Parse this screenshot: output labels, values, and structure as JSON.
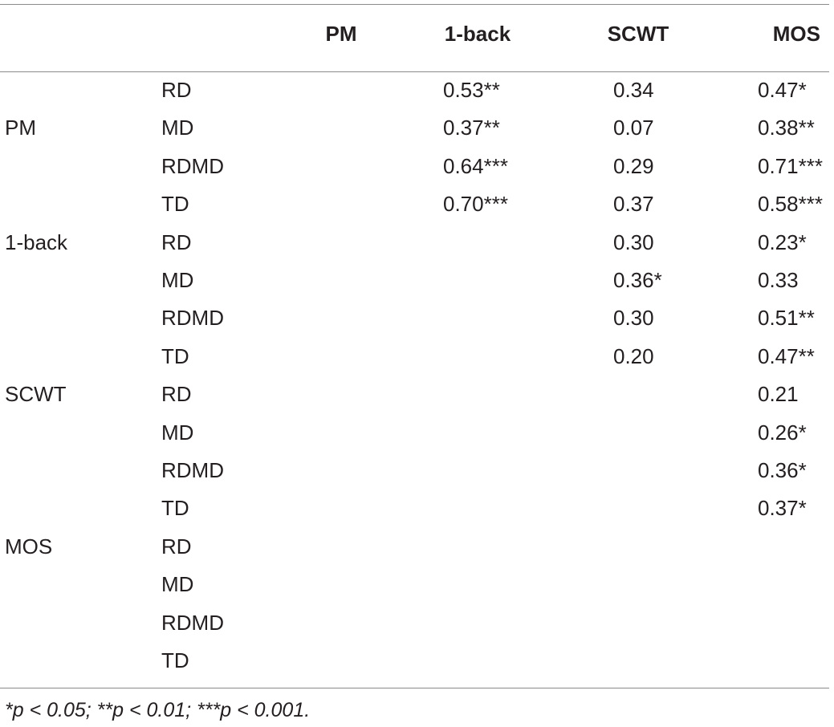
{
  "table": {
    "headers": [
      "",
      "",
      "PM",
      "1-back",
      "SCWT",
      "MOS"
    ],
    "rows": [
      {
        "group": "",
        "sub": "RD",
        "pm": "",
        "oneback": "0.53**",
        "scwt": "0.34",
        "mos": "0.47*"
      },
      {
        "group": "PM",
        "sub": "MD",
        "pm": "",
        "oneback": "0.37**",
        "scwt": "0.07",
        "mos": "0.38**"
      },
      {
        "group": "",
        "sub": "RDMD",
        "pm": "",
        "oneback": "0.64***",
        "scwt": "0.29",
        "mos": "0.71***"
      },
      {
        "group": "",
        "sub": "TD",
        "pm": "",
        "oneback": "0.70***",
        "scwt": "0.37",
        "mos": "0.58***"
      },
      {
        "group": "1-back",
        "sub": "RD",
        "pm": "",
        "oneback": "",
        "scwt": "0.30",
        "mos": "0.23*"
      },
      {
        "group": "",
        "sub": "MD",
        "pm": "",
        "oneback": "",
        "scwt": "0.36*",
        "mos": "0.33"
      },
      {
        "group": "",
        "sub": "RDMD",
        "pm": "",
        "oneback": "",
        "scwt": "0.30",
        "mos": "0.51**"
      },
      {
        "group": "",
        "sub": "TD",
        "pm": "",
        "oneback": "",
        "scwt": "0.20",
        "mos": "0.47**"
      },
      {
        "group": "SCWT",
        "sub": "RD",
        "pm": "",
        "oneback": "",
        "scwt": "",
        "mos": "0.21"
      },
      {
        "group": "",
        "sub": "MD",
        "pm": "",
        "oneback": "",
        "scwt": "",
        "mos": "0.26*"
      },
      {
        "group": "",
        "sub": "RDMD",
        "pm": "",
        "oneback": "",
        "scwt": "",
        "mos": "0.36*"
      },
      {
        "group": "",
        "sub": "TD",
        "pm": "",
        "oneback": "",
        "scwt": "",
        "mos": "0.37*"
      },
      {
        "group": "MOS",
        "sub": "RD",
        "pm": "",
        "oneback": "",
        "scwt": "",
        "mos": ""
      },
      {
        "group": "",
        "sub": "MD",
        "pm": "",
        "oneback": "",
        "scwt": "",
        "mos": ""
      },
      {
        "group": "",
        "sub": "RDMD",
        "pm": "",
        "oneback": "",
        "scwt": "",
        "mos": ""
      },
      {
        "group": "",
        "sub": "TD",
        "pm": "",
        "oneback": "",
        "scwt": "",
        "mos": ""
      }
    ],
    "footnote": "*p < 0.05; **p < 0.01; ***p < 0.001."
  }
}
